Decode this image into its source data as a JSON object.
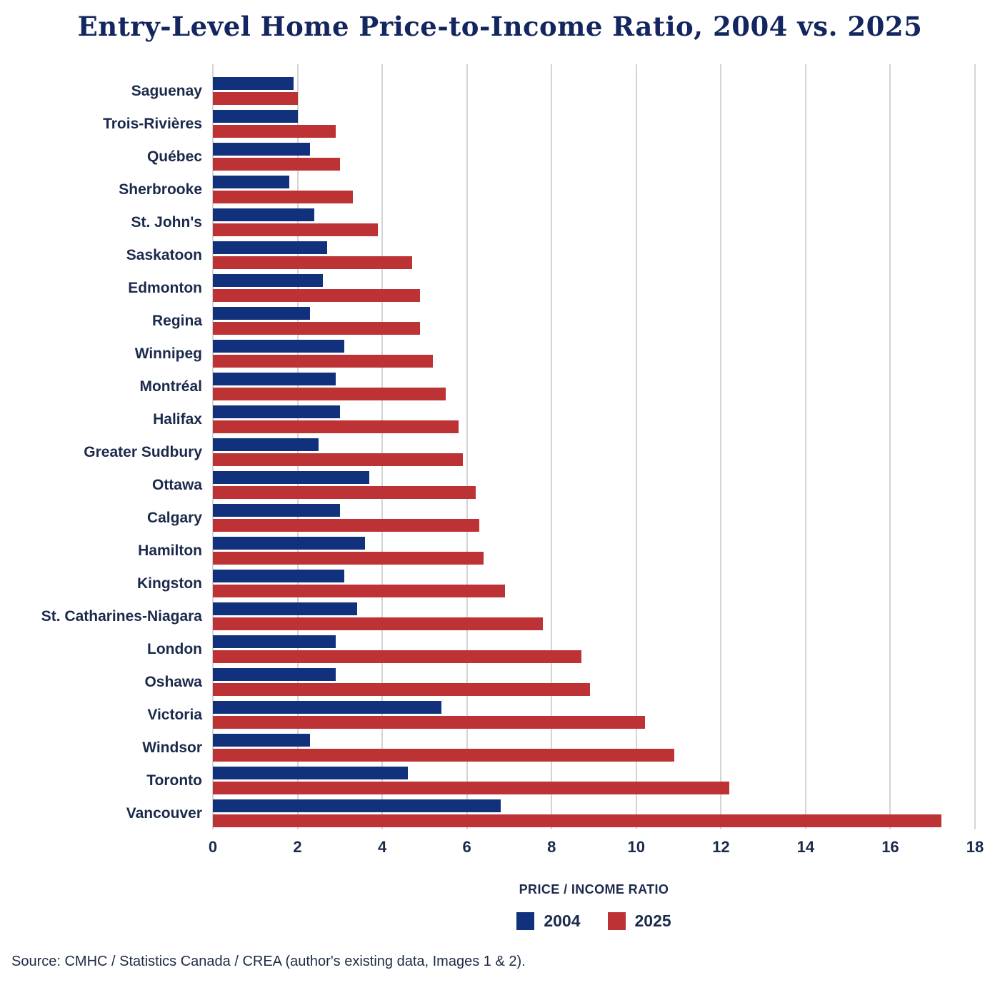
{
  "title": "Entry-Level Home Price-to-Income Ratio, 2004 vs. 2025",
  "source": "Source: CMHC / Statistics Canada / CREA (author's existing data, Images 1 & 2).",
  "colors": {
    "title_text": "#13265f",
    "axis_text": "#1b2a4c",
    "gridline": "#d4d4d4",
    "series_2004": "#11317d",
    "series_2025": "#bd3235"
  },
  "chart_data": {
    "type": "bar",
    "orientation": "horizontal",
    "title": "Entry-Level Home Price-to-Income Ratio, 2004 vs. 2025",
    "xlabel": "PRICE / INCOME RATIO",
    "ylabel": "",
    "xlim": [
      0,
      18
    ],
    "xticks": [
      0,
      2,
      4,
      6,
      8,
      10,
      12,
      14,
      16,
      18
    ],
    "grid": true,
    "legend_position": "bottom",
    "categories": [
      "Saguenay",
      "Trois-Rivières",
      "Québec",
      "Sherbrooke",
      "St. John's",
      "Saskatoon",
      "Edmonton",
      "Regina",
      "Winnipeg",
      "Montréal",
      "Halifax",
      "Greater Sudbury",
      "Ottawa",
      "Calgary",
      "Hamilton",
      "Kingston",
      "St. Catharines-Niagara",
      "London",
      "Oshawa",
      "Victoria",
      "Windsor",
      "Toronto",
      "Vancouver"
    ],
    "series": [
      {
        "name": "2004",
        "color": "#11317d",
        "values": [
          1.9,
          2.0,
          2.3,
          1.8,
          2.4,
          2.7,
          2.6,
          2.3,
          3.1,
          2.9,
          3.0,
          2.5,
          3.7,
          3.0,
          3.6,
          3.1,
          3.4,
          2.9,
          2.9,
          5.4,
          2.3,
          4.6,
          6.8
        ]
      },
      {
        "name": "2025",
        "color": "#bd3235",
        "values": [
          2.0,
          2.9,
          3.0,
          3.3,
          3.9,
          4.7,
          4.9,
          4.9,
          5.2,
          5.5,
          5.8,
          5.9,
          6.2,
          6.3,
          6.4,
          6.9,
          7.8,
          8.7,
          8.9,
          10.2,
          10.9,
          12.2,
          17.2
        ]
      }
    ]
  }
}
